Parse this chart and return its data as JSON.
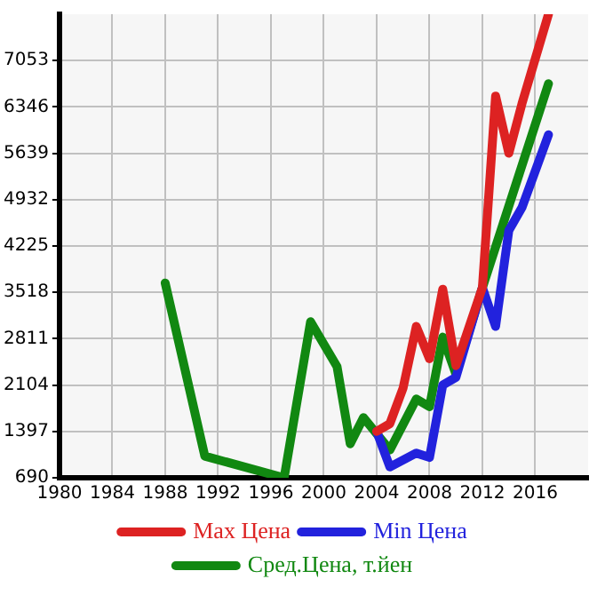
{
  "chart_data": {
    "type": "line",
    "xlim": [
      1980,
      2020
    ],
    "xticks": [
      1980,
      1984,
      1988,
      1992,
      1996,
      2000,
      2004,
      2008,
      2012,
      2016
    ],
    "ylim": [
      690,
      7760
    ],
    "yticks": [
      690,
      1397,
      2104,
      2811,
      3518,
      4225,
      4932,
      5639,
      6346,
      7053
    ],
    "grid": true,
    "legend": "bottom",
    "marker": "none",
    "line_style": "solid",
    "series": [
      {
        "name": "Max Цена",
        "color": "#dd2222",
        "x": [
          2004,
          2005,
          2006,
          2007,
          2008,
          2009,
          2010,
          2012,
          2013,
          2014,
          2015,
          2017
        ],
        "values": [
          1397,
          1515,
          2057,
          2999,
          2505,
          3566,
          2400,
          3589,
          6512,
          5639,
          6400,
          7760
        ]
      },
      {
        "name": "Min Цена",
        "color": "#2222dd",
        "x": [
          2004,
          2005,
          2007,
          2008,
          2009,
          2010,
          2012,
          2013,
          2014,
          2015,
          2017
        ],
        "values": [
          1397,
          855,
          1067,
          1000,
          2104,
          2222,
          3589,
          2999,
          4461,
          4814,
          5922
        ]
      },
      {
        "name": "Сред.Цена, т.йен",
        "color": "#118811",
        "x": [
          1988,
          1991,
          1997,
          1999,
          2001,
          2002,
          2003,
          2005,
          2007,
          2008,
          2009,
          2010,
          2012,
          2017
        ],
        "values": [
          3660,
          1020,
          690,
          3070,
          2387,
          1208,
          1609,
          1114,
          1892,
          1774,
          2835,
          2269,
          3589,
          6700
        ]
      }
    ]
  }
}
